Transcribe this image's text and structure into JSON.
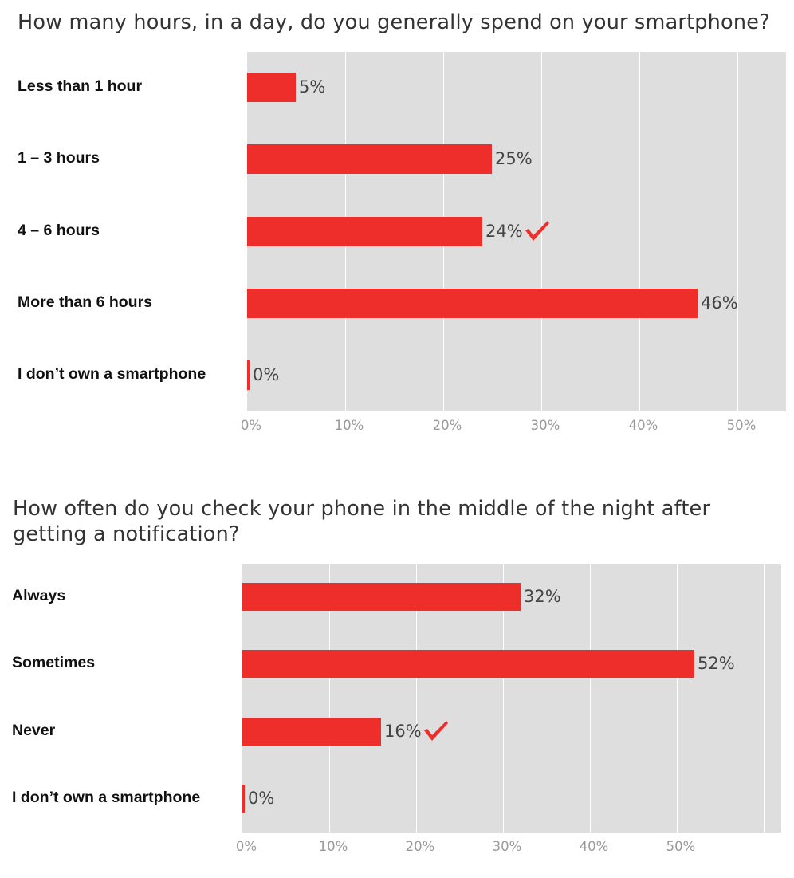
{
  "colors": {
    "bar": "#ee2e2a",
    "plot_background": "#dedede",
    "gridline": "#ffffff",
    "check": "#ee2e2a"
  },
  "chart_data": [
    {
      "type": "bar",
      "orientation": "horizontal",
      "title": "How many hours, in a day, do you generally spend on your smartphone?",
      "categories": [
        "Less than 1 hour",
        "1 – 3 hours",
        "4 – 6 hours",
        "More than 6 hours",
        "I don’t own a smartphone"
      ],
      "values": [
        5,
        25,
        24,
        46,
        0
      ],
      "value_labels": [
        "5%",
        "25%",
        "24%",
        "46%",
        "0%"
      ],
      "checked_category_index": 2,
      "check_icon": "checkmark-icon",
      "xlim": [
        0,
        55
      ],
      "ticks": [
        0,
        10,
        20,
        30,
        40,
        50
      ],
      "tick_labels": [
        "0%",
        "10%",
        "20%",
        "30%",
        "40%",
        "50%"
      ],
      "grid": true
    },
    {
      "type": "bar",
      "orientation": "horizontal",
      "title_lines": [
        "How often do you check your phone in the middle of the night after",
        "getting a notification?"
      ],
      "categories": [
        "Always",
        "Sometimes",
        "Never",
        "I don’t own a smartphone"
      ],
      "values": [
        32,
        52,
        16,
        0
      ],
      "value_labels": [
        "32%",
        "52%",
        "16%",
        "0%"
      ],
      "checked_category_index": 2,
      "check_icon": "checkmark-icon",
      "xlim": [
        0,
        62
      ],
      "ticks": [
        0,
        10,
        20,
        30,
        40,
        50,
        60
      ],
      "tick_labels": [
        "0%",
        "10%",
        "20%",
        "30%",
        "40%",
        "50%",
        ""
      ],
      "grid": true
    }
  ]
}
